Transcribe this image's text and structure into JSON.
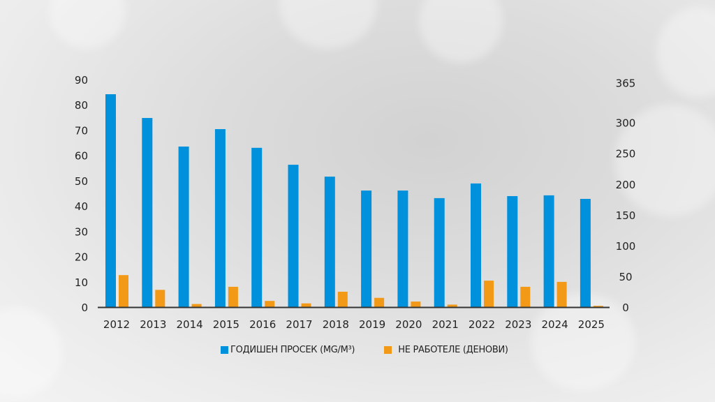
{
  "colors": {
    "blue": "#0091dc",
    "orange": "#f29a17",
    "axis": "#333333"
  },
  "chart_data": {
    "type": "bar",
    "categories": [
      "2012",
      "2013",
      "2014",
      "2015",
      "2016",
      "2017",
      "2018",
      "2019",
      "2020",
      "2021",
      "2022",
      "2023",
      "2024",
      "2025"
    ],
    "series": [
      {
        "name": "ГОДИШЕН ПРОСЕК (MG/M³)",
        "axis": "left",
        "values": [
          84.2,
          74.8,
          63.5,
          70.4,
          63.0,
          56.3,
          51.6,
          46.1,
          46.1,
          43.1,
          48.9,
          43.9,
          44.2,
          42.8
        ]
      },
      {
        "name": "НЕ РАБОТЕЛЕ (ДЕНОВИ)",
        "axis": "right",
        "values": [
          52,
          28,
          5,
          33,
          10,
          6,
          25,
          15,
          9,
          4,
          43,
          33,
          41,
          2
        ]
      }
    ],
    "left_axis": {
      "ylim": [
        0,
        90
      ],
      "ticks": [
        "0",
        "10",
        "20",
        "30",
        "40",
        "50",
        "60",
        "70",
        "80",
        "90"
      ]
    },
    "right_axis": {
      "ylim": [
        0,
        370
      ],
      "ticks": [
        "0",
        "50",
        "100",
        "150",
        "200",
        "250",
        "300",
        "365"
      ]
    },
    "legend": "bottom"
  }
}
